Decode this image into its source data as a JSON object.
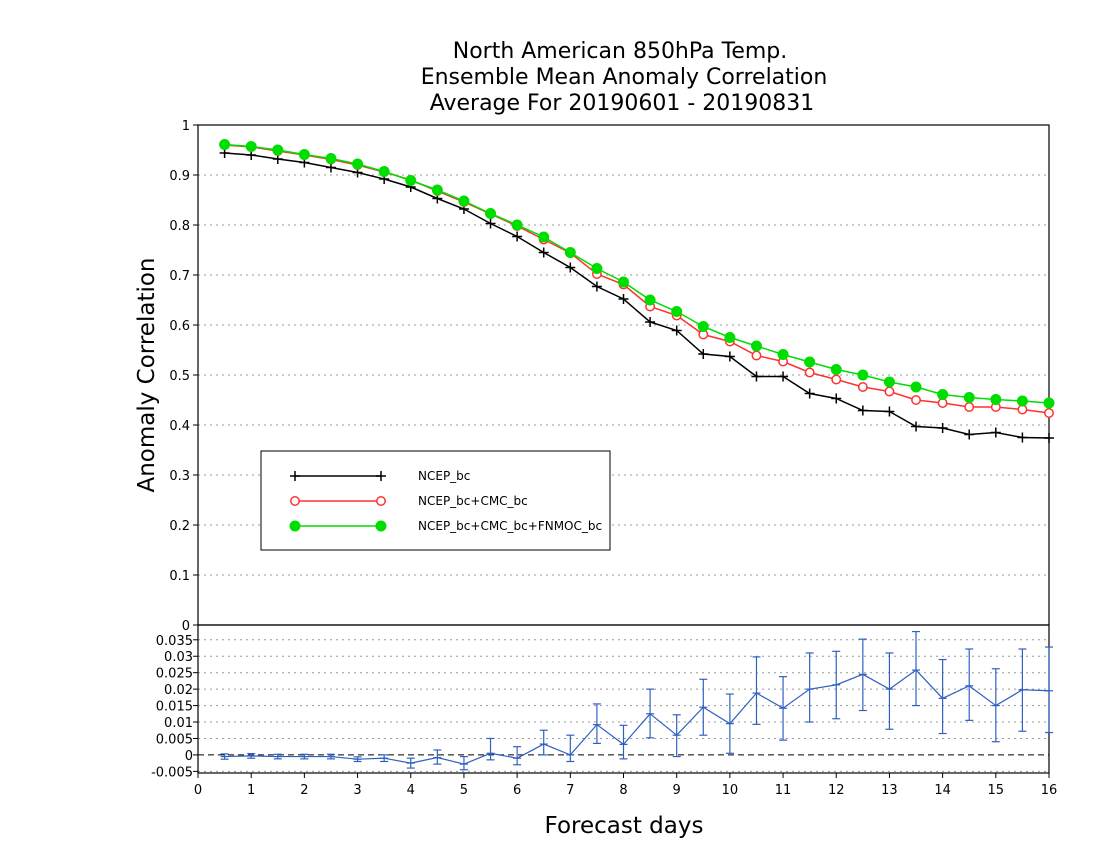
{
  "chart_data": [
    {
      "type": "line",
      "title_lines": [
        "North American 850hPa Temp.",
        "Ensemble Mean Anomaly Correlation",
        "Average For 20190601 - 20190831"
      ],
      "xlabel": "Forecast days",
      "ylabel": "Anomaly Correlation",
      "xlim": [
        0,
        16
      ],
      "ylim": [
        0,
        1
      ],
      "xticks": [
        "0",
        "1",
        "2",
        "3",
        "4",
        "5",
        "6",
        "7",
        "8",
        "9",
        "10",
        "11",
        "12",
        "13",
        "14",
        "15",
        "16"
      ],
      "yticks": [
        "0",
        "0.1",
        "0.2",
        "0.3",
        "0.4",
        "0.5",
        "0.6",
        "0.7",
        "0.8",
        "0.9",
        "1"
      ],
      "grid": true,
      "legend_position": "lower-left",
      "x": [
        0.5,
        1,
        1.5,
        2,
        2.5,
        3,
        3.5,
        4,
        4.5,
        5,
        5.5,
        6,
        6.5,
        7,
        7.5,
        8,
        8.5,
        9,
        9.5,
        10,
        10.5,
        11,
        11.5,
        12,
        12.5,
        13,
        13.5,
        14,
        14.5,
        15,
        15.5,
        16
      ],
      "series": [
        {
          "name": "NCEP_bc",
          "color": "#000000",
          "marker": "plus",
          "values": [
            0.944,
            0.94,
            0.932,
            0.925,
            0.915,
            0.905,
            0.892,
            0.876,
            0.853,
            0.832,
            0.803,
            0.777,
            0.745,
            0.715,
            0.677,
            0.652,
            0.606,
            0.589,
            0.542,
            0.537,
            0.497,
            0.497,
            0.463,
            0.453,
            0.429,
            0.427,
            0.397,
            0.394,
            0.381,
            0.385,
            0.375,
            0.374
          ]
        },
        {
          "name": "NCEP_bc+CMC_bc",
          "color": "#ff3030",
          "marker": "open-circle",
          "values": [
            0.96,
            0.956,
            0.948,
            0.94,
            0.931,
            0.92,
            0.906,
            0.89,
            0.868,
            0.846,
            0.822,
            0.798,
            0.771,
            0.744,
            0.702,
            0.681,
            0.637,
            0.619,
            0.581,
            0.567,
            0.539,
            0.527,
            0.505,
            0.491,
            0.476,
            0.467,
            0.45,
            0.444,
            0.436,
            0.436,
            0.431,
            0.424
          ]
        },
        {
          "name": "NCEP_bc+CMC_bc+FNMOC_bc",
          "color": "#00dd00",
          "marker": "filled-circle",
          "values": [
            0.961,
            0.957,
            0.95,
            0.941,
            0.933,
            0.922,
            0.907,
            0.889,
            0.87,
            0.848,
            0.823,
            0.8,
            0.776,
            0.745,
            0.713,
            0.686,
            0.65,
            0.627,
            0.597,
            0.575,
            0.558,
            0.541,
            0.526,
            0.511,
            0.5,
            0.486,
            0.476,
            0.461,
            0.455,
            0.451,
            0.448,
            0.444
          ]
        }
      ]
    },
    {
      "type": "line",
      "xlim": [
        0,
        16
      ],
      "ylim": [
        -0.0055,
        0.0395
      ],
      "yticks": [
        "-0.005",
        "0",
        "0.005",
        "0.01",
        "0.015",
        "0.02",
        "0.025",
        "0.03",
        "0.035"
      ],
      "grid": true,
      "zero_line": true,
      "color": "#3060c0",
      "x": [
        0.5,
        1,
        1.5,
        2,
        2.5,
        3,
        3.5,
        4,
        4.5,
        5,
        5.5,
        6,
        6.5,
        7,
        7.5,
        8,
        8.5,
        9,
        9.5,
        10,
        10.5,
        11,
        11.5,
        12,
        12.5,
        13,
        13.5,
        14,
        14.5,
        15,
        15.5,
        16
      ],
      "values": [
        -0.0005,
        -0.0003,
        -0.0005,
        -0.0005,
        -0.0005,
        -0.0013,
        -0.001,
        -0.0025,
        -0.0008,
        -0.0028,
        0.0005,
        -0.001,
        0.0033,
        0.0,
        0.0092,
        0.0032,
        0.0125,
        0.006,
        0.0145,
        0.0095,
        0.0188,
        0.0142,
        0.02,
        0.0213,
        0.0245,
        0.02,
        0.0258,
        0.0172,
        0.021,
        0.015,
        0.0198,
        0.0195
      ],
      "err_low": [
        -0.0013,
        -0.001,
        -0.0012,
        -0.0012,
        -0.0012,
        -0.002,
        -0.002,
        -0.004,
        -0.0028,
        -0.0045,
        -0.0015,
        -0.003,
        0.0,
        -0.002,
        0.0035,
        -0.0012,
        0.0052,
        -0.0005,
        0.006,
        0.0005,
        0.0093,
        0.0045,
        0.01,
        0.011,
        0.0135,
        0.0078,
        0.015,
        0.0065,
        0.0105,
        0.004,
        0.0072,
        0.0068
      ],
      "err_high": [
        0.0003,
        0.0004,
        0.0002,
        0.0002,
        0.0002,
        -0.0006,
        0.0,
        -0.001,
        0.0015,
        -0.0005,
        0.005,
        0.0025,
        0.0075,
        0.006,
        0.0155,
        0.009,
        0.02,
        0.0122,
        0.023,
        0.0185,
        0.0298,
        0.0238,
        0.031,
        0.0315,
        0.0352,
        0.031,
        0.0375,
        0.029,
        0.0322,
        0.0262,
        0.0322,
        0.0328
      ]
    }
  ]
}
